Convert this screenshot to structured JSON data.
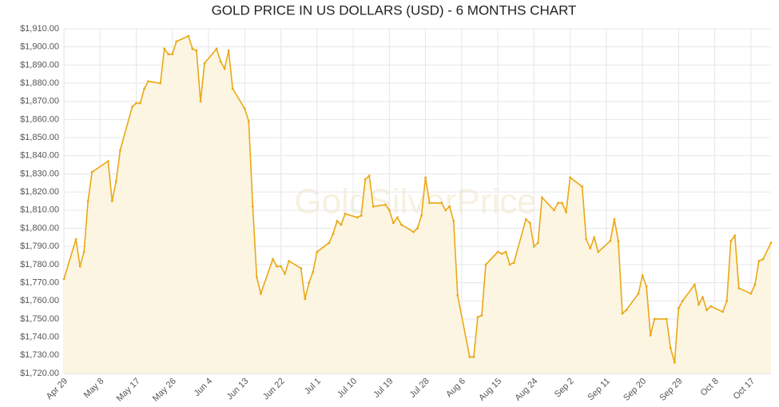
{
  "chart_data": {
    "type": "line",
    "title": "GOLD PRICE IN US DOLLARS (USD) - 6 MONTHS CHART",
    "watermark": "GoldSilverPrice",
    "x": [
      0,
      3,
      4,
      5,
      6,
      7,
      11,
      12,
      13,
      14,
      17,
      18,
      19,
      20,
      21,
      24,
      25,
      26,
      27,
      28,
      31,
      32,
      33,
      34,
      35,
      38,
      39,
      40,
      41,
      42,
      45,
      46,
      47,
      48,
      49,
      52,
      53,
      54,
      55,
      56,
      59,
      60,
      61,
      62,
      63,
      66,
      67,
      68,
      69,
      70,
      73,
      74,
      75,
      76,
      77,
      80,
      81,
      82,
      83,
      84,
      87,
      88,
      89,
      90,
      91,
      94,
      95,
      96,
      97,
      98,
      101,
      102,
      103,
      104,
      105,
      108,
      109,
      110,
      111,
      112,
      115,
      116,
      117,
      118,
      119,
      122,
      123,
      124,
      125,
      126,
      129,
      130,
      131,
      132,
      133,
      136,
      137,
      138,
      139,
      140,
      143,
      144,
      145,
      146,
      147,
      150,
      151,
      152,
      153,
      154,
      157,
      158,
      159,
      160,
      161,
      164,
      165,
      166,
      167,
      168,
      171,
      172,
      173,
      174,
      176
    ],
    "series": [
      {
        "name": "Gold",
        "color": "#eba814",
        "fill": "#fbf5e2",
        "values": [
          1772,
          1794,
          1779,
          1787,
          1815,
          1831,
          1837,
          1815,
          1826,
          1843,
          1867,
          1869,
          1869,
          1877,
          1881,
          1880,
          1899,
          1896,
          1896,
          1903,
          1906,
          1899,
          1898,
          1870,
          1891,
          1899,
          1892,
          1888,
          1898,
          1877,
          1866,
          1859,
          1812,
          1773,
          1764,
          1783,
          1779,
          1779,
          1775,
          1782,
          1778,
          1761,
          1770,
          1776,
          1787,
          1792,
          1797,
          1804,
          1802,
          1808,
          1806,
          1807,
          1827,
          1829,
          1812,
          1813,
          1810,
          1803,
          1806,
          1802,
          1798,
          1800,
          1807,
          1828,
          1814,
          1814,
          1810,
          1812,
          1804,
          1763,
          1729,
          1729,
          1751,
          1752,
          1780,
          1787,
          1786,
          1787,
          1780,
          1781,
          1805,
          1803,
          1790,
          1792,
          1817,
          1810,
          1814,
          1814,
          1809,
          1828,
          1823,
          1794,
          1789,
          1795,
          1787,
          1793,
          1805,
          1793,
          1753,
          1755,
          1764,
          1774,
          1768,
          1741,
          1750,
          1750,
          1734,
          1726,
          1756,
          1760,
          1769,
          1758,
          1762,
          1755,
          1757,
          1754,
          1760,
          1793,
          1796,
          1767,
          1764,
          1769,
          1782,
          1783,
          1792
        ]
      }
    ],
    "xlim": [
      0,
      176
    ],
    "xticks": [
      {
        "value": 0,
        "label": "Apr 29"
      },
      {
        "value": 9,
        "label": "May 8"
      },
      {
        "value": 18,
        "label": "May 17"
      },
      {
        "value": 27,
        "label": "May 26"
      },
      {
        "value": 36,
        "label": "Jun 4"
      },
      {
        "value": 45,
        "label": "Jun 13"
      },
      {
        "value": 54,
        "label": "Jun 22"
      },
      {
        "value": 63,
        "label": "Jul 1"
      },
      {
        "value": 72,
        "label": "Jul 10"
      },
      {
        "value": 81,
        "label": "Jul 19"
      },
      {
        "value": 90,
        "label": "Jul 28"
      },
      {
        "value": 99,
        "label": "Aug 6"
      },
      {
        "value": 108,
        "label": "Aug 15"
      },
      {
        "value": 117,
        "label": "Aug 24"
      },
      {
        "value": 126,
        "label": "Sep 2"
      },
      {
        "value": 135,
        "label": "Sep 11"
      },
      {
        "value": 144,
        "label": "Sep 20"
      },
      {
        "value": 153,
        "label": "Sep 29"
      },
      {
        "value": 162,
        "label": "Oct 8"
      },
      {
        "value": 171,
        "label": "Oct 17"
      }
    ],
    "ylim": [
      1720,
      1910
    ],
    "yticks": [
      {
        "value": 1720,
        "label": "$1,720.00"
      },
      {
        "value": 1730,
        "label": "$1,730.00"
      },
      {
        "value": 1740,
        "label": "$1,740.00"
      },
      {
        "value": 1750,
        "label": "$1,750.00"
      },
      {
        "value": 1760,
        "label": "$1,760.00"
      },
      {
        "value": 1770,
        "label": "$1,770.00"
      },
      {
        "value": 1780,
        "label": "$1,780.00"
      },
      {
        "value": 1790,
        "label": "$1,790.00"
      },
      {
        "value": 1800,
        "label": "$1,800.00"
      },
      {
        "value": 1810,
        "label": "$1,810.00"
      },
      {
        "value": 1820,
        "label": "$1,820.00"
      },
      {
        "value": 1830,
        "label": "$1,830.00"
      },
      {
        "value": 1840,
        "label": "$1,840.00"
      },
      {
        "value": 1850,
        "label": "$1,850.00"
      },
      {
        "value": 1860,
        "label": "$1,860.00"
      },
      {
        "value": 1870,
        "label": "$1,870.00"
      },
      {
        "value": 1880,
        "label": "$1,880.00"
      },
      {
        "value": 1890,
        "label": "$1,890.00"
      },
      {
        "value": 1900,
        "label": "$1,900.00"
      },
      {
        "value": 1910,
        "label": "$1,910.00"
      }
    ],
    "grid": true
  }
}
